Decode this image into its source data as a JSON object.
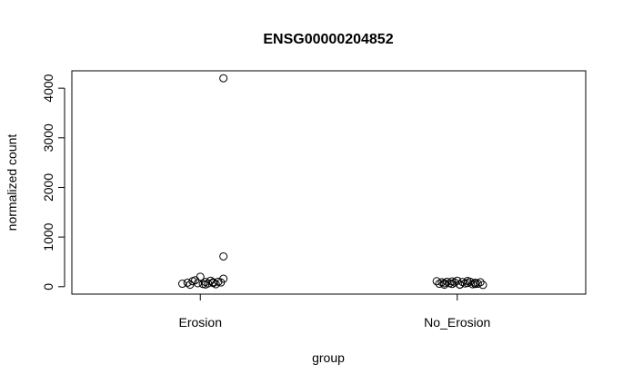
{
  "chart_data": {
    "type": "scatter",
    "title": "ENSG00000204852",
    "xlabel": "group",
    "ylabel": "normalized count",
    "categories": [
      "Erosion",
      "No_Erosion"
    ],
    "ylim": [
      -150,
      4350
    ],
    "yticks": [
      0,
      1000,
      2000,
      3000,
      4000
    ],
    "grid": false,
    "legend": "none",
    "series": [
      {
        "values": [
          [
            0.93,
            60
          ],
          [
            0.95,
            80
          ],
          [
            0.97,
            110
          ],
          [
            0.99,
            70
          ],
          [
            1.0,
            200
          ],
          [
            1.01,
            55
          ],
          [
            1.02,
            95
          ],
          [
            1.03,
            65
          ],
          [
            1.04,
            120
          ],
          [
            1.05,
            75
          ],
          [
            1.06,
            50
          ],
          [
            1.07,
            100
          ],
          [
            1.08,
            85
          ],
          [
            1.09,
            160
          ],
          [
            1.09,
            4200
          ],
          [
            1.09,
            610
          ],
          [
            0.96,
            40
          ],
          [
            0.98,
            130
          ],
          [
            1.02,
            45
          ],
          [
            1.05,
            90
          ]
        ]
      },
      {
        "values": [
          [
            1.92,
            110
          ],
          [
            1.93,
            60
          ],
          [
            1.94,
            90
          ],
          [
            1.95,
            40
          ],
          [
            1.96,
            100
          ],
          [
            1.97,
            70
          ],
          [
            1.98,
            55
          ],
          [
            1.99,
            85
          ],
          [
            2.0,
            120
          ],
          [
            2.01,
            45
          ],
          [
            2.02,
            95
          ],
          [
            2.03,
            65
          ],
          [
            2.04,
            75
          ],
          [
            2.05,
            100
          ],
          [
            2.06,
            50
          ],
          [
            2.07,
            80
          ],
          [
            2.08,
            60
          ],
          [
            2.09,
            90
          ],
          [
            2.1,
            35
          ],
          [
            1.95,
            70
          ],
          [
            1.98,
            105
          ],
          [
            2.01,
            40
          ],
          [
            2.04,
            115
          ],
          [
            2.07,
            55
          ]
        ]
      }
    ]
  }
}
